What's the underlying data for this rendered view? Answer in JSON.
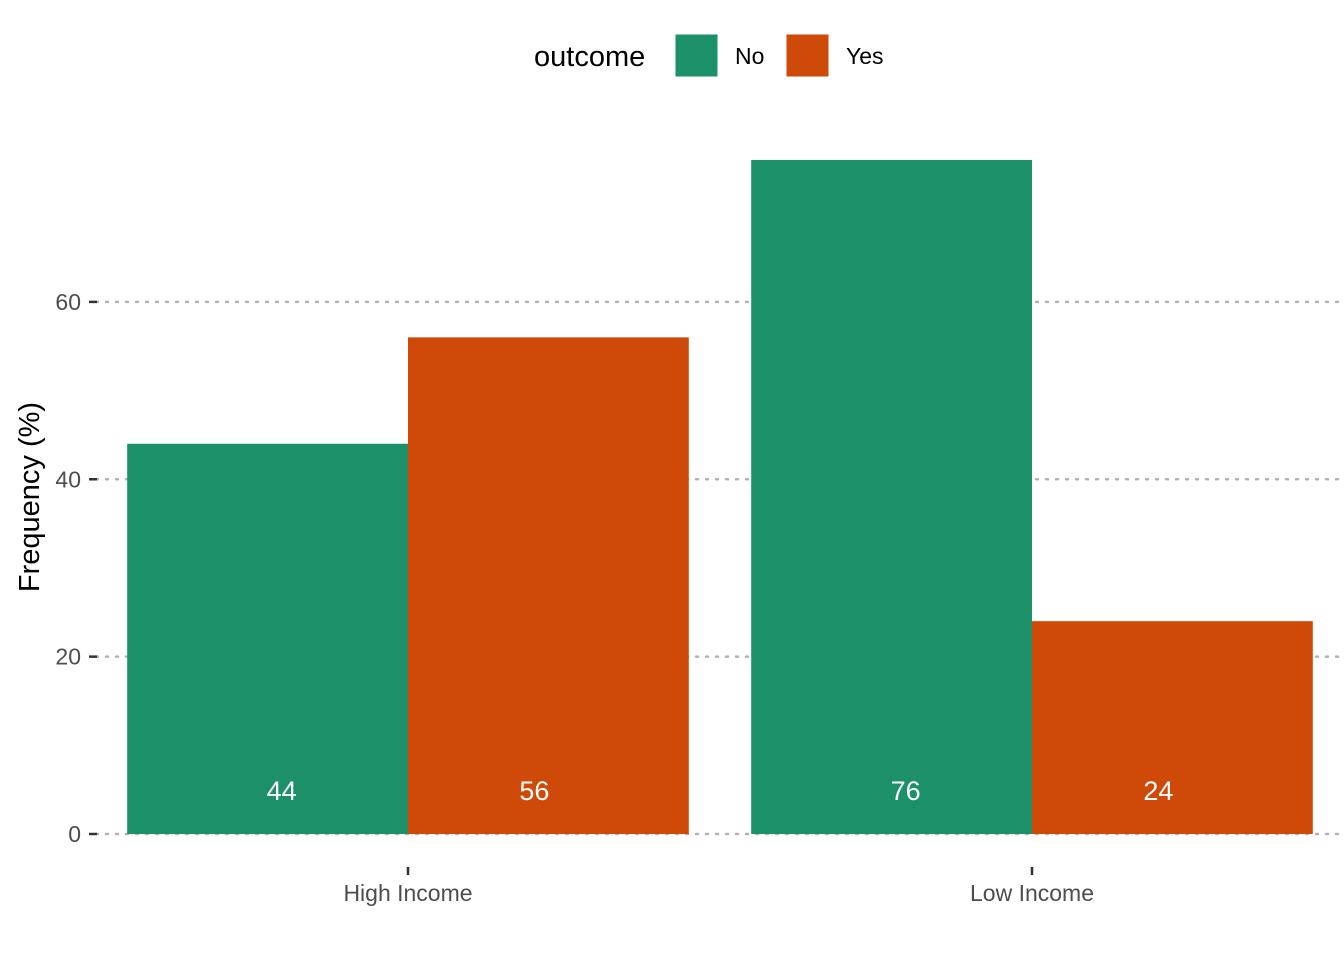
{
  "chart_data": {
    "type": "bar",
    "categories": [
      "High Income",
      "Low Income"
    ],
    "series": [
      {
        "name": "No",
        "color": "#1b9069",
        "values": [
          44,
          76
        ]
      },
      {
        "name": "Yes",
        "color": "#cf4a08",
        "values": [
          56,
          24
        ]
      }
    ],
    "data_labels": [
      [
        "44",
        "76"
      ],
      [
        "56",
        "24"
      ]
    ],
    "title": "",
    "xlabel": "",
    "ylabel": "Frequency (%)",
    "ylim": [
      0,
      76
    ],
    "yticks": [
      0,
      20,
      40,
      60
    ],
    "ytick_labels": [
      "0",
      "20",
      "40",
      "60"
    ],
    "grid": "horizontal dotted",
    "legend": {
      "title": "outcome",
      "position": "top",
      "entries": [
        "No",
        "Yes"
      ]
    }
  }
}
